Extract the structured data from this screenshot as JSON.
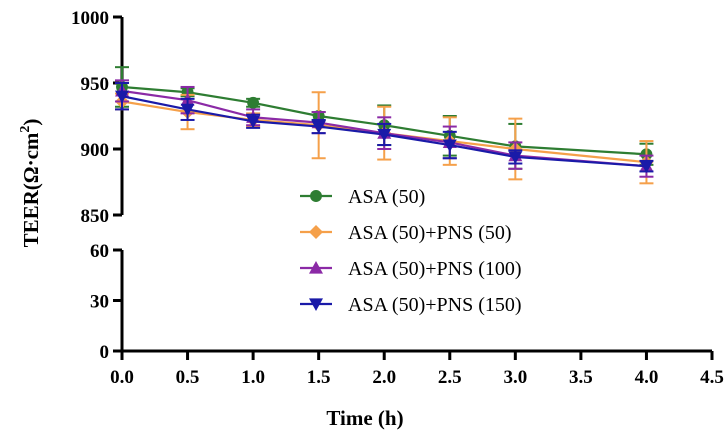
{
  "chart_data": {
    "type": "line",
    "x": [
      0,
      0.5,
      1,
      1.5,
      2,
      2.5,
      3,
      4
    ],
    "xlabel": "Time (h)",
    "ylabel_main": "TEER(Ω·cm",
    "ylabel_sup": "2",
    "ylabel_close": ")",
    "xlim": [
      0,
      4.5
    ],
    "x_ticks": [
      "0.0",
      "0.5",
      "1.0",
      "1.5",
      "2.0",
      "2.5",
      "3.0",
      "3.5",
      "4.0",
      "4.5"
    ],
    "x_tick_values": [
      0,
      0.5,
      1,
      1.5,
      2,
      2.5,
      3,
      3.5,
      4,
      4.5
    ],
    "y_segments": [
      {
        "range": [
          0,
          60
        ],
        "ticks": [
          "0",
          "30",
          "60"
        ],
        "tick_values": [
          0,
          30,
          60
        ]
      },
      {
        "range": [
          850,
          1000
        ],
        "ticks": [
          "850",
          "900",
          "950",
          "1000"
        ],
        "tick_values": [
          850,
          900,
          950,
          1000
        ]
      }
    ],
    "axis_break": true,
    "grid": false,
    "legend_position": "center",
    "series": [
      {
        "name": "ASA (50)",
        "marker": "circle",
        "color": "#2e7d32",
        "values": [
          947,
          943,
          935,
          925,
          918,
          910,
          902,
          896
        ],
        "errors": [
          15,
          3,
          3,
          3,
          15,
          15,
          17,
          8
        ]
      },
      {
        "name": "ASA (50)+PNS (50)",
        "marker": "diamond",
        "color": "#f5a04a",
        "values": [
          936,
          928,
          922,
          918,
          912,
          906,
          900,
          890
        ],
        "errors": [
          6,
          13,
          5,
          25,
          20,
          18,
          23,
          16
        ]
      },
      {
        "name": "ASA (50)+PNS (100)",
        "marker": "triangle-up",
        "color": "#8b2aa6",
        "values": [
          944,
          937,
          924,
          920,
          912,
          905,
          895,
          887
        ],
        "errors": [
          8,
          10,
          6,
          8,
          12,
          12,
          10,
          8
        ]
      },
      {
        "name": "ASA (50)+PNS (150)",
        "marker": "triangle-down",
        "color": "#1a1aa8",
        "values": [
          940,
          930,
          921,
          917,
          911,
          903,
          894,
          887
        ],
        "errors": [
          10,
          8,
          5,
          5,
          8,
          10,
          5,
          4
        ]
      }
    ]
  }
}
